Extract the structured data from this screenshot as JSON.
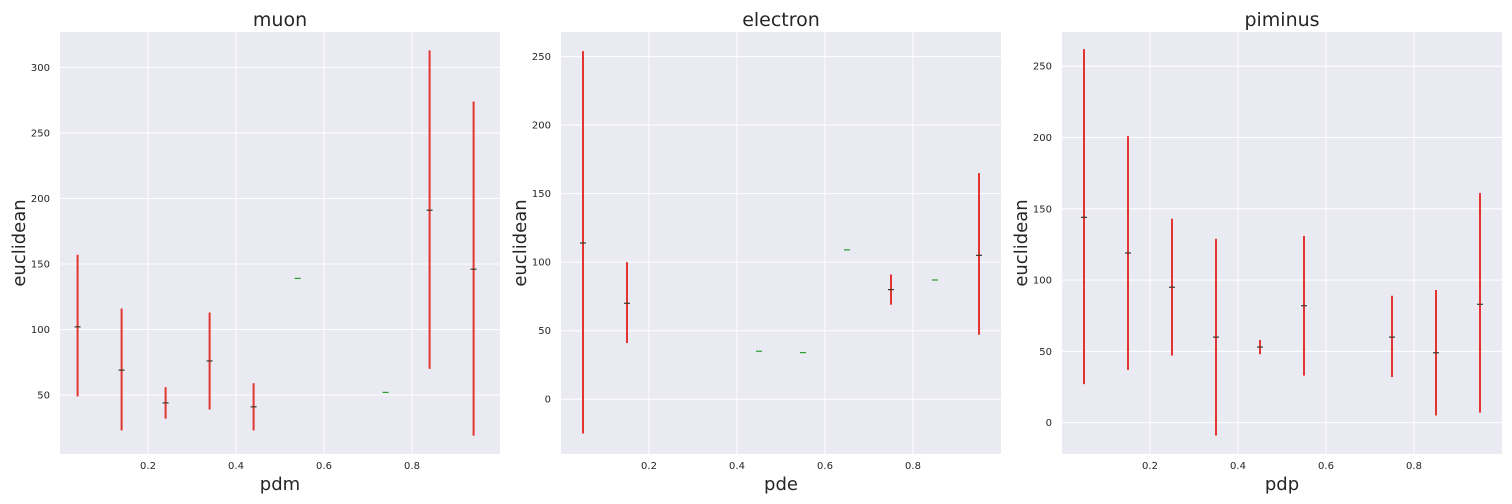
{
  "chart_data": [
    {
      "type": "errorbar",
      "title": "muon",
      "xlabel": "pdm",
      "ylabel": "euclidean",
      "xlim": [
        0.0,
        1.0
      ],
      "ylim": [
        5,
        327
      ],
      "xticks": [
        0.2,
        0.4,
        0.6,
        0.8
      ],
      "xtick_labels": [
        "0.2",
        "0.4",
        "0.6",
        "0.8"
      ],
      "yticks": [
        50,
        100,
        150,
        200,
        250,
        300
      ],
      "ytick_labels": [
        "50",
        "100",
        "150",
        "200",
        "250",
        "300"
      ],
      "grid": true,
      "points": [
        {
          "x": 0.04,
          "y": 102,
          "low": 49,
          "high": 157
        },
        {
          "x": 0.14,
          "y": 69,
          "low": 23,
          "high": 116
        },
        {
          "x": 0.24,
          "y": 44,
          "low": 32,
          "high": 56
        },
        {
          "x": 0.34,
          "y": 76,
          "low": 39,
          "high": 113
        },
        {
          "x": 0.44,
          "y": 41,
          "low": 23,
          "high": 59
        },
        {
          "x": 0.54,
          "y": 139,
          "low": 139,
          "high": 139
        },
        {
          "x": 0.74,
          "y": 52,
          "low": 52,
          "high": 52
        },
        {
          "x": 0.84,
          "y": 191,
          "low": 70,
          "high": 313
        },
        {
          "x": 0.94,
          "y": 146,
          "low": 19,
          "high": 274
        }
      ]
    },
    {
      "type": "errorbar",
      "title": "electron",
      "xlabel": "pde",
      "ylabel": "euclidean",
      "xlim": [
        0.0,
        1.0
      ],
      "ylim": [
        -40,
        268
      ],
      "xticks": [
        0.2,
        0.4,
        0.6,
        0.8
      ],
      "xtick_labels": [
        "0.2",
        "0.4",
        "0.6",
        "0.8"
      ],
      "yticks": [
        0,
        50,
        100,
        150,
        200,
        250
      ],
      "ytick_labels": [
        "0",
        "50",
        "100",
        "150",
        "200",
        "250"
      ],
      "grid": true,
      "points": [
        {
          "x": 0.05,
          "y": 114,
          "low": -25,
          "high": 254
        },
        {
          "x": 0.15,
          "y": 70,
          "low": 41,
          "high": 100
        },
        {
          "x": 0.45,
          "y": 35,
          "low": 35,
          "high": 35
        },
        {
          "x": 0.55,
          "y": 34,
          "low": 34,
          "high": 34
        },
        {
          "x": 0.65,
          "y": 109,
          "low": 109,
          "high": 109
        },
        {
          "x": 0.75,
          "y": 80,
          "low": 69,
          "high": 91
        },
        {
          "x": 0.85,
          "y": 87,
          "low": 87,
          "high": 87
        },
        {
          "x": 0.95,
          "y": 105,
          "low": 47,
          "high": 165
        }
      ]
    },
    {
      "type": "errorbar",
      "title": "piminus",
      "xlabel": "pdp",
      "ylabel": "euclidean",
      "xlim": [
        0.0,
        1.0
      ],
      "ylim": [
        -22,
        274
      ],
      "xticks": [
        0.2,
        0.4,
        0.6,
        0.8
      ],
      "xtick_labels": [
        "0.2",
        "0.4",
        "0.6",
        "0.8"
      ],
      "yticks": [
        0,
        50,
        100,
        150,
        200,
        250
      ],
      "ytick_labels": [
        "0",
        "50",
        "100",
        "150",
        "200",
        "250"
      ],
      "grid": true,
      "points": [
        {
          "x": 0.05,
          "y": 144,
          "low": 27,
          "high": 262
        },
        {
          "x": 0.15,
          "y": 119,
          "low": 37,
          "high": 201
        },
        {
          "x": 0.25,
          "y": 95,
          "low": 47,
          "high": 143
        },
        {
          "x": 0.35,
          "y": 60,
          "low": -9,
          "high": 129
        },
        {
          "x": 0.45,
          "y": 53,
          "low": 48,
          "high": 58
        },
        {
          "x": 0.55,
          "y": 82,
          "low": 33,
          "high": 131
        },
        {
          "x": 0.75,
          "y": 60,
          "low": 32,
          "high": 89
        },
        {
          "x": 0.85,
          "y": 49,
          "low": 5,
          "high": 93
        },
        {
          "x": 0.95,
          "y": 83,
          "low": 7,
          "high": 161
        }
      ]
    }
  ],
  "colors": {
    "errorbar": "#e3342f",
    "marker_with_error": "#3a3a2e",
    "marker_no_error": "#2a9d2a",
    "axes_background": "#eaeaf2",
    "grid": "#ffffff"
  }
}
